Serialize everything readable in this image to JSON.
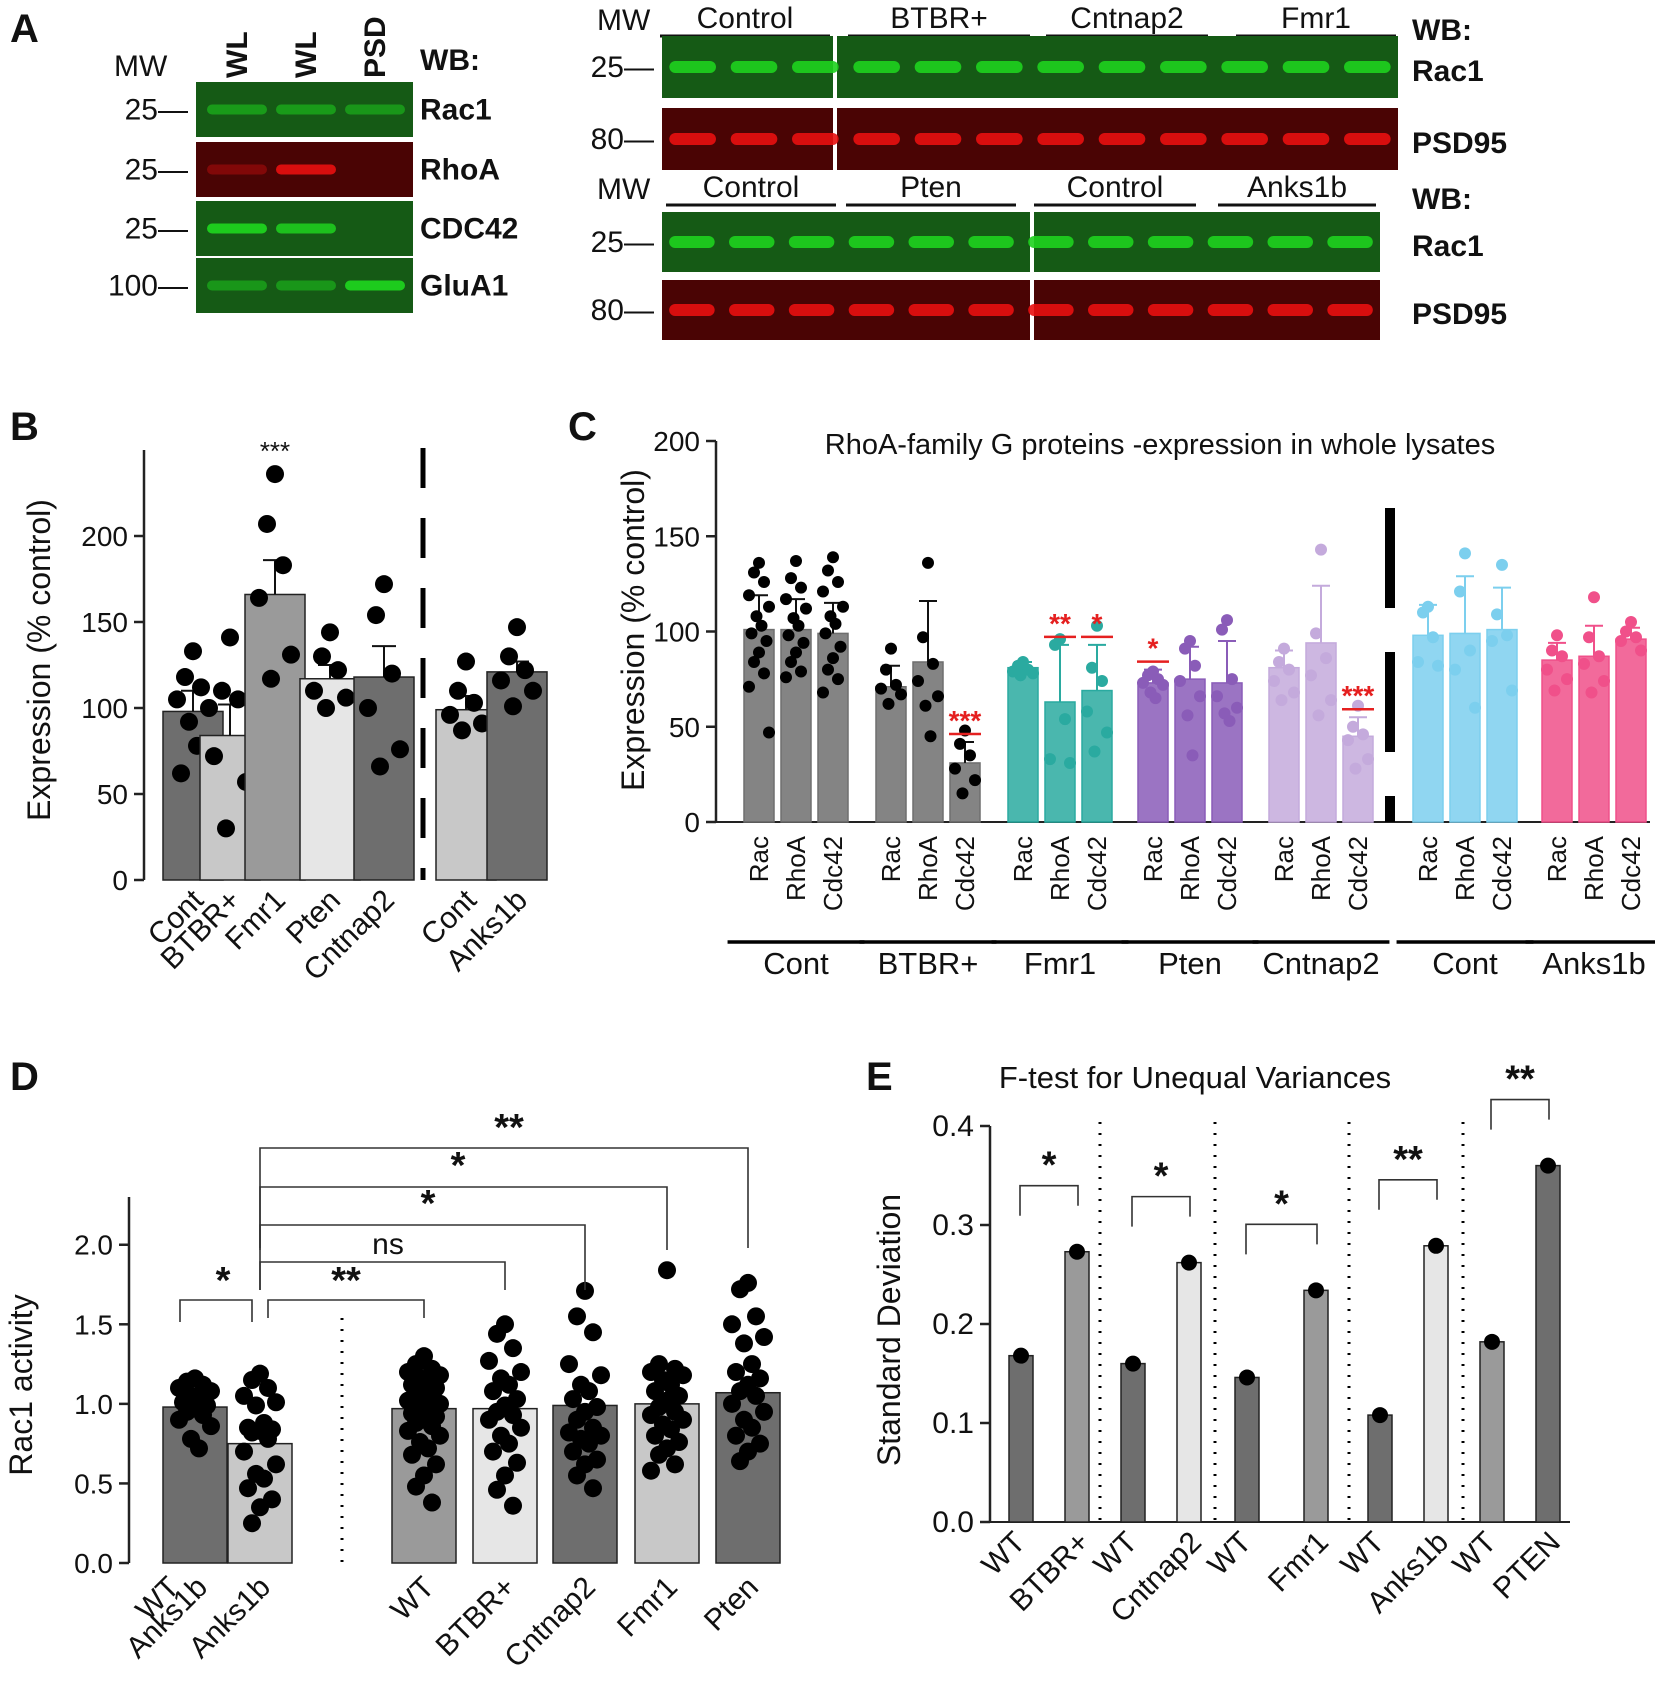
{
  "colors": {
    "gfp": "#1ed21e",
    "rfp": "#e81010",
    "blot_green_bg": "#155a15",
    "blot_red_bg": "#4a0404",
    "dark_gray": "#6e6e6e",
    "mid_gray": "#9a9a9a",
    "light_gray": "#c8c8c8",
    "vlight_gray": "#e6e6e6",
    "teal": "#2aaaa0",
    "purple": "#8a5cb8",
    "lilac": "#c4aadc",
    "sky": "#7ccfee",
    "pink": "#f0508a",
    "red_text": "#e52020"
  },
  "panelA": {
    "label": "A",
    "left_blot": {
      "mw_label": "MW",
      "lane_labels": [
        "WL",
        "WL",
        "PSD"
      ],
      "wb_label": "WB:",
      "strips": [
        {
          "mw": "25",
          "protein": "Rac1",
          "channel": "green",
          "lanes": [
            0.55,
            0.55,
            0.5
          ]
        },
        {
          "mw": "25",
          "protein": "RhoA",
          "channel": "red",
          "lanes": [
            0.35,
            0.9,
            0.0
          ]
        },
        {
          "mw": "25",
          "protein": "CDC42",
          "channel": "green",
          "lanes": [
            0.95,
            0.85,
            0.0
          ]
        },
        {
          "mw": "100",
          "protein": "GluA1",
          "channel": "green",
          "lanes": [
            0.5,
            0.5,
            0.95
          ]
        }
      ]
    },
    "right_top": {
      "mw_label": "MW",
      "groups": [
        "Control",
        "BTBR+",
        "Cntnap2",
        "Fmr1"
      ],
      "wb_label": "WB:",
      "rows": [
        {
          "mw": "25",
          "protein": "Rac1",
          "channel": "green"
        },
        {
          "mw": "80",
          "protein": "PSD95",
          "channel": "red"
        }
      ]
    },
    "right_bottom": {
      "mw_label": "MW",
      "groups": [
        "Control",
        "Pten",
        "Control",
        "Anks1b"
      ],
      "wb_label": "WB:",
      "rows": [
        {
          "mw": "25",
          "protein": "Rac1",
          "channel": "green"
        },
        {
          "mw": "80",
          "protein": "PSD95",
          "channel": "red"
        }
      ]
    }
  },
  "chart_data": [
    {
      "panel": "B",
      "type": "bar",
      "ylabel": "Expression (% control)",
      "ylim": [
        0,
        250
      ],
      "yticks": [
        0,
        50,
        100,
        150,
        200
      ],
      "categories": [
        "Cont",
        "BTBR+",
        "Fmr1",
        "Pten",
        "Cntnap2",
        "Cont",
        "Anks1b"
      ],
      "values": [
        98,
        84,
        166,
        117,
        118,
        99,
        121
      ],
      "errors": [
        12,
        18,
        20,
        8,
        18,
        8,
        6
      ],
      "points": [
        [
          133,
          118,
          112,
          105,
          100,
          92,
          78,
          62
        ],
        [
          141,
          110,
          105,
          72,
          57,
          30
        ],
        [
          236,
          207,
          183,
          164,
          131,
          117
        ],
        [
          144,
          130,
          122,
          110,
          106,
          100
        ],
        [
          172,
          154,
          120,
          100,
          76,
          66
        ],
        [
          127,
          110,
          103,
          96,
          91,
          87
        ],
        [
          147,
          130,
          122,
          116,
          110,
          101
        ]
      ],
      "annotations": [
        {
          "category_index": 2,
          "text": "***"
        }
      ],
      "divider_after_index": 4
    },
    {
      "panel": "C",
      "type": "bar",
      "title": "RhoA-family G proteins -expression in whole lysates",
      "ylabel": "Expression (% control)",
      "ylim": [
        0,
        200
      ],
      "yticks": [
        0,
        50,
        100,
        150,
        200
      ],
      "subcategories": [
        "Rac",
        "RhoA",
        "Cdc42"
      ],
      "groups": [
        {
          "name": "Cont",
          "values": [
            101,
            101,
            99
          ],
          "errors": [
            18,
            16,
            16
          ],
          "sig": [
            "",
            "",
            ""
          ],
          "points": [
            [
              136,
              131,
              126,
              119,
              113,
              108,
              103,
              99,
              95,
              89,
              84,
              78,
              71,
              47
            ],
            [
              137,
              128,
              123,
              117,
              112,
              107,
              103,
              98,
              94,
              89,
              84,
              79,
              76
            ],
            [
              139,
              132,
              126,
              121,
              113,
              108,
              104,
              99,
              92,
              86,
              80,
              75,
              68
            ]
          ]
        },
        {
          "name": "BTBR+",
          "values": [
            71,
            84,
            31
          ],
          "errors": [
            11,
            32,
            11
          ],
          "sig": [
            "",
            "",
            "***"
          ],
          "points": [
            [
              91,
              80,
              72,
              70,
              67,
              62
            ],
            [
              136,
              97,
              83,
              74,
              66,
              61,
              45
            ],
            [
              48,
              41,
              35,
              28,
              22,
              15
            ]
          ]
        },
        {
          "name": "Fmr1",
          "values": [
            81,
            63,
            69
          ],
          "errors": [
            3,
            30,
            24
          ],
          "sig": [
            "",
            "**",
            "*"
          ],
          "points": [
            [
              84,
              82,
              80,
              79,
              78,
              77
            ],
            [
              96,
              93,
              54,
              33,
              31
            ],
            [
              103,
              81,
              74,
              58,
              47,
              37
            ]
          ]
        },
        {
          "name": "Pten",
          "values": [
            73,
            75,
            73
          ],
          "errors": [
            7,
            17,
            22
          ],
          "sig": [
            "*",
            "",
            ""
          ],
          "points": [
            [
              79,
              77,
              75,
              73,
              72,
              68,
              65
            ],
            [
              95,
              91,
              82,
              74,
              66,
              56,
              35
            ],
            [
              106,
              101,
              75,
              66,
              60,
              57,
              53
            ]
          ]
        },
        {
          "name": "Cntnap2",
          "values": [
            81,
            94,
            45
          ],
          "errors": [
            9,
            30,
            10
          ],
          "sig": [
            "",
            "",
            "***"
          ],
          "points": [
            [
              91,
              84,
              80,
              74,
              68,
              64
            ],
            [
              143,
              99,
              86,
              77,
              64,
              56
            ],
            [
              61,
              50,
              46,
              43,
              33,
              28
            ]
          ]
        },
        {
          "name": "Cont",
          "values": [
            98,
            99,
            101
          ],
          "errors": [
            16,
            30,
            22
          ],
          "sig": [
            "",
            "",
            ""
          ],
          "points": [
            [
              113,
              110,
              97,
              84,
              82
            ],
            [
              141,
              121,
              90,
              80,
              60
            ],
            [
              135,
              109,
              98,
              95,
              69
            ]
          ]
        },
        {
          "name": "Anks1b",
          "values": [
            85,
            87,
            96
          ],
          "errors": [
            9,
            16,
            6
          ],
          "sig": [
            "",
            "",
            ""
          ],
          "points": [
            [
              98,
              90,
              87,
              80,
              75,
              69
            ],
            [
              118,
              97,
              87,
              83,
              74,
              68
            ],
            [
              105,
              100,
              97,
              95,
              90
            ]
          ]
        }
      ],
      "divider_after_group": 4
    },
    {
      "panel": "D",
      "type": "bar",
      "ylabel": "Rac1 activity",
      "ylim": [
        0,
        2.3
      ],
      "yticks": [
        0.0,
        0.5,
        1.0,
        1.5,
        2.0
      ],
      "categories": [
        "WT Anks1b",
        "Anks1b",
        "WT",
        "BTBR+",
        "Cntnap2",
        "Fmr1",
        "Pten"
      ],
      "values": [
        0.98,
        0.75,
        0.97,
        0.97,
        0.99,
        1.0,
        1.07
      ],
      "points": [
        [
          1.16,
          1.14,
          1.12,
          1.1,
          1.08,
          1.05,
          1.03,
          1.01,
          0.99,
          0.97,
          0.95,
          0.93,
          0.9,
          0.86,
          0.78,
          0.72
        ],
        [
          1.19,
          1.15,
          1.1,
          1.05,
          1.01,
          0.99,
          0.88,
          0.85,
          0.84,
          0.83,
          0.82,
          0.78,
          0.7,
          0.62,
          0.56,
          0.53,
          0.47,
          0.4,
          0.35,
          0.25
        ],
        [
          1.3,
          1.25,
          1.22,
          1.2,
          1.18,
          1.16,
          1.14,
          1.12,
          1.1,
          1.08,
          1.06,
          1.04,
          1.02,
          1.0,
          0.98,
          0.96,
          0.94,
          0.92,
          0.9,
          0.88,
          0.86,
          0.83,
          0.8,
          0.76,
          0.72,
          0.68,
          0.62,
          0.55,
          0.48,
          0.38
        ],
        [
          1.5,
          1.44,
          1.35,
          1.27,
          1.2,
          1.16,
          1.12,
          1.08,
          1.03,
          0.99,
          0.95,
          0.93,
          0.9,
          0.85,
          0.8,
          0.75,
          0.7,
          0.63,
          0.55,
          0.46,
          0.36
        ],
        [
          1.71,
          1.55,
          1.45,
          1.25,
          1.18,
          1.12,
          1.08,
          1.03,
          0.98,
          0.95,
          0.9,
          0.85,
          0.82,
          0.8,
          0.78,
          0.75,
          0.7,
          0.65,
          0.62,
          0.55,
          0.47
        ],
        [
          1.84,
          1.25,
          1.22,
          1.2,
          1.18,
          1.15,
          1.12,
          1.08,
          1.05,
          1.02,
          0.98,
          0.95,
          0.93,
          0.9,
          0.87,
          0.84,
          0.8,
          0.76,
          0.72,
          0.68,
          0.62,
          0.58
        ],
        [
          1.76,
          1.72,
          1.55,
          1.5,
          1.42,
          1.38,
          1.25,
          1.2,
          1.16,
          1.12,
          1.08,
          1.05,
          1.0,
          0.95,
          0.9,
          0.85,
          0.8,
          0.75,
          0.7,
          0.64
        ]
      ],
      "comparisons": [
        {
          "from": 0,
          "to": 1,
          "label": "*"
        },
        {
          "from": 1,
          "to": 2,
          "label": "**"
        },
        {
          "from": 1,
          "to": 3,
          "label": "ns"
        },
        {
          "from": 1,
          "to": 4,
          "label": "*"
        },
        {
          "from": 1,
          "to": 5,
          "label": "*"
        },
        {
          "from": 1,
          "to": 6,
          "label": "**"
        }
      ]
    },
    {
      "panel": "E",
      "type": "bar",
      "title": "F-test for Unequal Variances",
      "ylabel": "Standard Deviation",
      "ylim": [
        0,
        0.4
      ],
      "yticks": [
        0.0,
        0.1,
        0.2,
        0.3,
        0.4
      ],
      "pairs": [
        {
          "labels": [
            "WT",
            "BTBR+"
          ],
          "values": [
            0.168,
            0.273
          ],
          "sig": "*"
        },
        {
          "labels": [
            "WT",
            "Cntnap2"
          ],
          "values": [
            0.16,
            0.262
          ],
          "sig": "*"
        },
        {
          "labels": [
            "WT",
            "Fmr1"
          ],
          "values": [
            0.146,
            0.234
          ],
          "sig": "*"
        },
        {
          "labels": [
            "WT",
            "Anks1b"
          ],
          "values": [
            0.108,
            0.279
          ],
          "sig": "**"
        },
        {
          "labels": [
            "WT",
            "PTEN"
          ],
          "values": [
            0.182,
            0.36
          ],
          "sig": "**"
        }
      ]
    }
  ]
}
